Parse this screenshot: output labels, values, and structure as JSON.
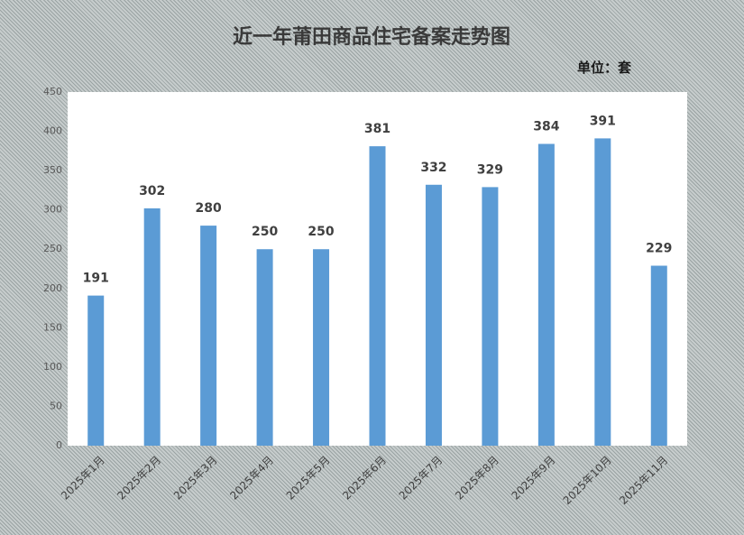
{
  "chart_data": {
    "type": "bar",
    "title": "近一年莆田商品住宅备案走势图",
    "unit": "单位：套",
    "categories": [
      "2025年1月",
      "2025年2月",
      "2025年3月",
      "2025年4月",
      "2025年5月",
      "2025年6月",
      "2025年7月",
      "2025年8月",
      "2025年9月",
      "2025年10月",
      "2025年11月"
    ],
    "values": [
      191,
      302,
      280,
      250,
      250,
      381,
      332,
      329,
      384,
      391,
      229
    ],
    "color": "#5b9bd5",
    "ylim": [
      0,
      450
    ],
    "yticks": [
      0,
      50,
      100,
      150,
      200,
      250,
      300,
      350,
      400,
      450
    ],
    "grid": false
  }
}
